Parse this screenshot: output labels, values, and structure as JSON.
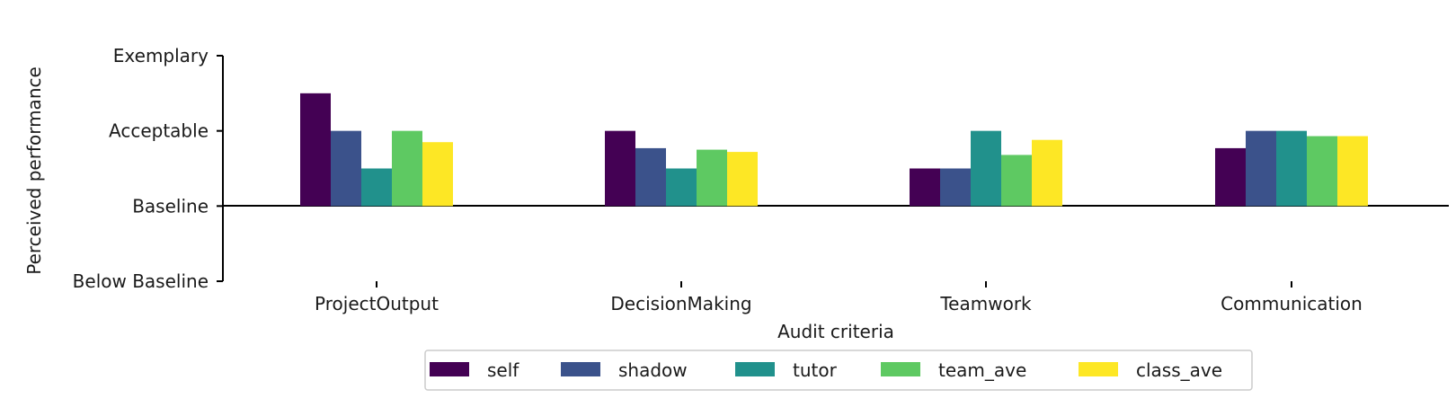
{
  "chart_data": {
    "type": "bar",
    "xlabel": "Audit criteria",
    "ylabel": "Perceived performance",
    "categories": [
      "ProjectOutput",
      "DecisionMaking",
      "Teamwork",
      "Communication"
    ],
    "y_ticks": [
      {
        "value": -1,
        "label": "Below Baseline"
      },
      {
        "value": 0,
        "label": "Baseline"
      },
      {
        "value": 1,
        "label": "Acceptable"
      },
      {
        "value": 2,
        "label": "Exemplary"
      }
    ],
    "ylim": [
      -1,
      2
    ],
    "grid": false,
    "legend_position": "bottom-center",
    "series": [
      {
        "name": "self",
        "color": "#440154",
        "values": [
          1.5,
          1.0,
          0.5,
          0.77
        ]
      },
      {
        "name": "shadow",
        "color": "#3b528b",
        "values": [
          1.0,
          0.77,
          0.5,
          1.0
        ]
      },
      {
        "name": "tutor",
        "color": "#21918c",
        "values": [
          0.5,
          0.5,
          1.0,
          1.0
        ]
      },
      {
        "name": "team_ave",
        "color": "#5ec962",
        "values": [
          1.0,
          0.75,
          0.68,
          0.93
        ]
      },
      {
        "name": "class_ave",
        "color": "#fde725",
        "values": [
          0.85,
          0.72,
          0.88,
          0.93
        ]
      }
    ]
  }
}
